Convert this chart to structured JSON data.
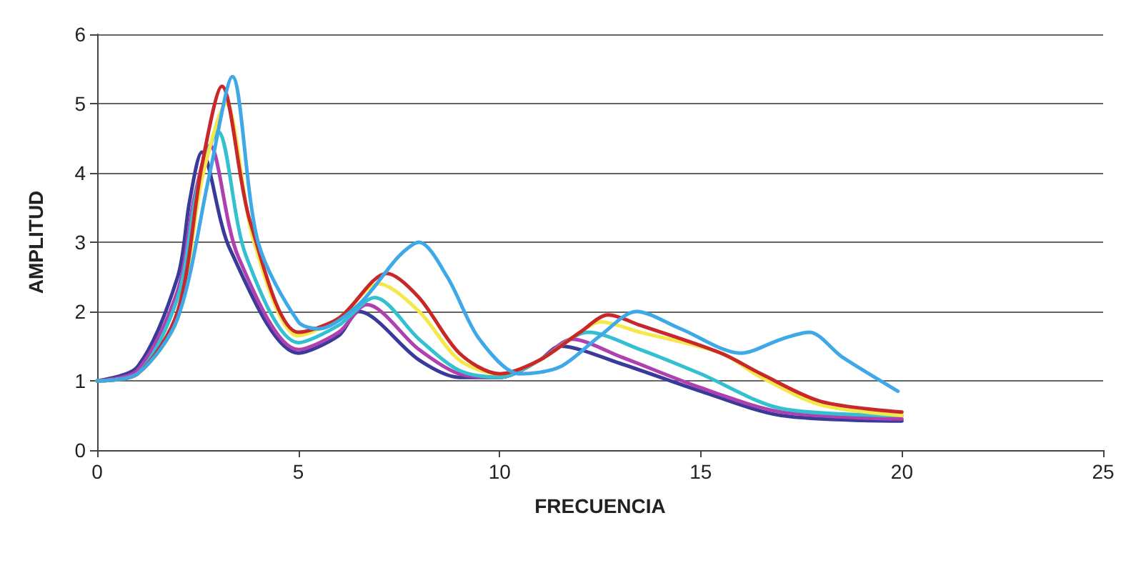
{
  "chart_data": {
    "type": "line",
    "xlabel": "FRECUENCIA",
    "ylabel": "AMPLITUD",
    "xlim": [
      0,
      25
    ],
    "xticks": [
      0,
      5,
      10,
      15,
      20,
      25
    ],
    "ylim": [
      0,
      6
    ],
    "yticks": [
      0,
      1,
      2,
      3,
      4,
      5,
      6
    ],
    "grid": "y",
    "marker": "none",
    "line_style": "solid",
    "series": [
      {
        "color": "#3a3a9a",
        "x": [
          0,
          1,
          2,
          2.3,
          2.6,
          3.3,
          5,
          6,
          6.5,
          8,
          9,
          10,
          11,
          11.5,
          13,
          15,
          17,
          20
        ],
        "values": [
          1,
          1.2,
          2.5,
          3.6,
          4.3,
          2.9,
          1.4,
          1.65,
          2.0,
          1.3,
          1.05,
          1.05,
          1.3,
          1.5,
          1.25,
          0.85,
          0.5,
          0.42
        ]
      },
      {
        "color": "#b040b0",
        "x": [
          0,
          1,
          2,
          2.4,
          2.8,
          3.5,
          5,
          6,
          6.7,
          8,
          9,
          10,
          11,
          11.8,
          13,
          15,
          17,
          20
        ],
        "values": [
          1,
          1.15,
          2.3,
          3.6,
          4.4,
          2.8,
          1.45,
          1.7,
          2.1,
          1.45,
          1.1,
          1.05,
          1.3,
          1.6,
          1.35,
          0.9,
          0.55,
          0.45
        ]
      },
      {
        "color": "#33c0d0",
        "x": [
          0,
          1,
          2,
          2.5,
          3.0,
          3.7,
          5,
          6,
          6.9,
          8,
          9,
          10,
          11,
          12.2,
          13.5,
          15,
          17,
          20
        ],
        "values": [
          1,
          1.1,
          2.2,
          3.8,
          4.6,
          2.8,
          1.55,
          1.8,
          2.2,
          1.6,
          1.15,
          1.05,
          1.3,
          1.7,
          1.45,
          1.1,
          0.6,
          0.5
        ]
      },
      {
        "color": "#f5e84a",
        "x": [
          0,
          1,
          2,
          2.6,
          3.2,
          3.9,
          5,
          6,
          7,
          8,
          9,
          10,
          11,
          12,
          12.5,
          13.5,
          15.5,
          16.5,
          18,
          20
        ],
        "values": [
          1,
          1.1,
          1.9,
          3.9,
          5.0,
          3.0,
          1.65,
          1.9,
          2.4,
          2.0,
          1.3,
          1.1,
          1.3,
          1.7,
          1.85,
          1.7,
          1.4,
          1.05,
          0.65,
          0.5
        ]
      },
      {
        "color": "#c8282a",
        "x": [
          0,
          1,
          2,
          2.6,
          3.1,
          3.8,
          5,
          6,
          7.2,
          8,
          9,
          10,
          11,
          12,
          12.7,
          13.5,
          15.5,
          16.5,
          18,
          20
        ],
        "values": [
          1,
          1.1,
          2.0,
          4.1,
          5.25,
          3.3,
          1.7,
          1.9,
          2.55,
          2.2,
          1.4,
          1.1,
          1.3,
          1.7,
          1.95,
          1.8,
          1.4,
          1.1,
          0.7,
          0.55
        ]
      },
      {
        "color": "#3fa9e8",
        "x": [
          0,
          1,
          2,
          2.8,
          3.36,
          4,
          5,
          5.5,
          6.5,
          7.5,
          8,
          8.7,
          9.5,
          10.5,
          11.5,
          12.5,
          13.4,
          14.5,
          16,
          17,
          17.7,
          18.5,
          19.9
        ],
        "values": [
          1,
          1.1,
          1.9,
          4.0,
          5.39,
          3.0,
          1.85,
          1.75,
          2.1,
          2.8,
          3.0,
          2.5,
          1.6,
          1.1,
          1.2,
          1.65,
          2.0,
          1.75,
          1.4,
          1.6,
          1.7,
          1.35,
          0.85
        ]
      }
    ]
  }
}
